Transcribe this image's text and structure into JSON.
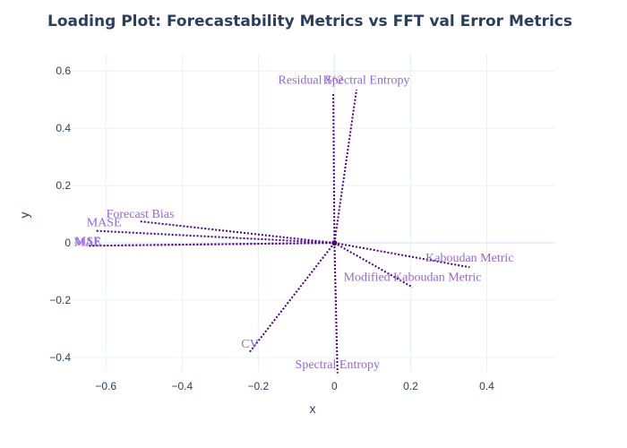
{
  "chart_data": {
    "type": "scatter",
    "title": "Loading Plot: Forecastability Metrics vs FFT val Error Metrics",
    "xlabel": "x",
    "ylabel": "y",
    "xlim": [
      -0.69,
      0.58
    ],
    "ylim": [
      -0.45,
      0.66
    ],
    "xticks": [
      -0.6,
      -0.4,
      -0.2,
      0,
      0.2,
      0.4
    ],
    "xtick_labels": [
      "−0.6",
      "−0.4",
      "−0.2",
      "0",
      "0.2",
      "0.4"
    ],
    "yticks": [
      -0.4,
      -0.2,
      0,
      0.2,
      0.4,
      0.6
    ],
    "ytick_labels": [
      "−0.4",
      "−0.2",
      "0",
      "0.2",
      "0.4",
      "0.6"
    ],
    "grid": true,
    "line_color": "#4b0082",
    "label_color": "#9467d8",
    "vectors": [
      {
        "name": "Residual Spectral Entropy",
        "x": 0.058,
        "y": 0.535,
        "label": "Residual Spectral Entropy",
        "lx": 0.025,
        "ly": 0.565
      },
      {
        "name": "R^2",
        "x": -0.003,
        "y": 0.52,
        "label": "R^2",
        "lx": -0.003,
        "ly": 0.565
      },
      {
        "name": "Forecast Bias",
        "x": -0.51,
        "y": 0.075,
        "label": "Forecast Bias",
        "lx": -0.51,
        "ly": 0.098
      },
      {
        "name": "MASE",
        "x": -0.625,
        "y": 0.042,
        "label": "MASE",
        "lx": -0.605,
        "ly": 0.068
      },
      {
        "name": "MSE",
        "x": -0.65,
        "y": -0.01,
        "label": "MSE",
        "lx": -0.647,
        "ly": 0.002
      },
      {
        "name": "MAE",
        "x": -0.645,
        "y": -0.01,
        "label": "MAE",
        "lx": -0.648,
        "ly": 0.0
      },
      {
        "name": "Kaboudan Metric",
        "x": 0.355,
        "y": -0.085,
        "label": "Kaboudan Metric",
        "lx": 0.355,
        "ly": -0.055
      },
      {
        "name": "Modified Kaboudan Metric",
        "x": 0.205,
        "y": -0.155,
        "label": "Modified Kaboudan Metric",
        "lx": 0.205,
        "ly": -0.123
      },
      {
        "name": "CV",
        "x": -0.222,
        "y": -0.38,
        "label": "CV",
        "lx": -0.222,
        "ly": -0.355
      },
      {
        "name": "Spectral Entropy",
        "x": 0.008,
        "y": -0.455,
        "label": "Spectral Entropy",
        "lx": 0.008,
        "ly": -0.428
      }
    ]
  }
}
